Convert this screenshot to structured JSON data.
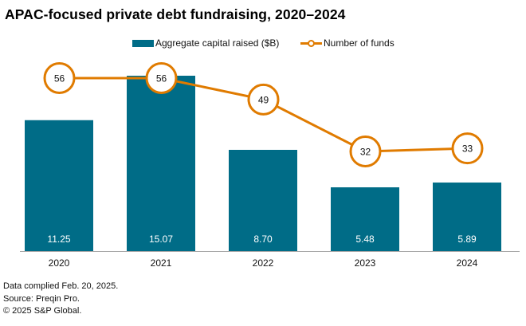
{
  "chart_data": {
    "type": "bar+line",
    "title": "APAC-focused private debt fundraising, 2020–2024",
    "categories": [
      "2020",
      "2021",
      "2022",
      "2023",
      "2024"
    ],
    "series": [
      {
        "name": "Aggregate capital raised ($B)",
        "type": "bar",
        "color": "#006c87",
        "values": [
          11.25,
          15.07,
          8.7,
          5.48,
          5.89
        ],
        "labels": [
          "11.25",
          "15.07",
          "8.70",
          "5.48",
          "5.89"
        ]
      },
      {
        "name": "Number of funds",
        "type": "line",
        "color": "#e07b00",
        "values": [
          56,
          56,
          49,
          32,
          33
        ],
        "labels": [
          "56",
          "56",
          "49",
          "32",
          "33"
        ]
      }
    ],
    "legend": {
      "position": "top-center"
    },
    "xlabel": "",
    "ylabel": "",
    "grid": false,
    "bar_ylim": [
      0,
      15.07
    ],
    "line_ylim": [
      0,
      56
    ]
  },
  "footer": {
    "lines": [
      "Data complied Feb. 20, 2025.",
      "Source: Preqin Pro.",
      "© 2025 S&P Global."
    ]
  }
}
